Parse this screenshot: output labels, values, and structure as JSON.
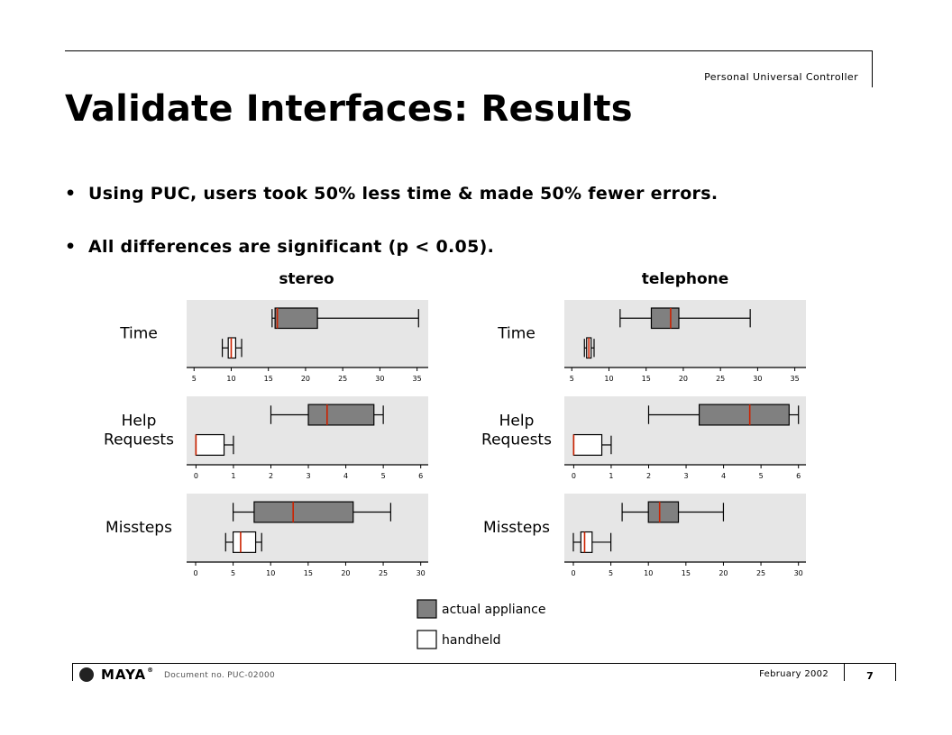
{
  "header": {
    "label": "Personal Universal Controller"
  },
  "title": "Validate Interfaces: Results",
  "bullets": [
    "Using PUC, users took 50% less time & made 50% fewer errors.",
    "All differences are significant (p < 0.05)."
  ],
  "bullet_glyph": "•",
  "colors": {
    "actual_box": "#808080",
    "handheld_box": "#ffffff",
    "median": "#cc2200",
    "panel_bg": "#e6e6e6"
  },
  "chart_data": [
    {
      "type": "boxplot",
      "title": "stereo",
      "panels": [
        {
          "label": "Time",
          "ticks": [
            5,
            10,
            15,
            20,
            25,
            30,
            35
          ],
          "xlim": [
            4,
            36.5
          ],
          "series": [
            {
              "name": "actual appliance",
              "min": 15.5,
              "q1": 15.9,
              "median": 16.2,
              "q3": 21.6,
              "max": 35.2
            },
            {
              "name": "handheld",
              "min": 8.8,
              "q1": 9.6,
              "median": 10.0,
              "q3": 10.6,
              "max": 11.4
            }
          ]
        },
        {
          "label": "Help Requests",
          "ticks": [
            0,
            1,
            2,
            3,
            4,
            5,
            6
          ],
          "xlim": [
            -0.25,
            6.2
          ],
          "series": [
            {
              "name": "actual appliance",
              "min": 2.0,
              "q1": 3.0,
              "median": 3.5,
              "q3": 4.75,
              "max": 5.0
            },
            {
              "name": "handheld",
              "min": 0,
              "q1": 0,
              "median": 0,
              "q3": 0.75,
              "max": 1.0
            }
          ]
        },
        {
          "label": "Missteps",
          "ticks": [
            0,
            5,
            10,
            15,
            20,
            25,
            30
          ],
          "xlim": [
            -1.2,
            31
          ],
          "series": [
            {
              "name": "actual appliance",
              "min": 5.0,
              "q1": 7.8,
              "median": 13.0,
              "q3": 21.0,
              "max": 26.0
            },
            {
              "name": "handheld",
              "min": 4.0,
              "q1": 5.0,
              "median": 6.0,
              "q3": 8.0,
              "max": 8.8
            }
          ]
        }
      ]
    },
    {
      "type": "boxplot",
      "title": "telephone",
      "panels": [
        {
          "label": "Time",
          "ticks": [
            5,
            10,
            15,
            20,
            25,
            30,
            35
          ],
          "xlim": [
            4,
            36.5
          ],
          "series": [
            {
              "name": "actual appliance",
              "min": 11.5,
              "q1": 15.7,
              "median": 18.3,
              "q3": 19.4,
              "max": 29.0
            },
            {
              "name": "handheld",
              "min": 6.7,
              "q1": 7.0,
              "median": 7.3,
              "q3": 7.6,
              "max": 8.0
            }
          ]
        },
        {
          "label": "Help Requests",
          "ticks": [
            0,
            1,
            2,
            3,
            4,
            5,
            6
          ],
          "xlim": [
            -0.25,
            6.2
          ],
          "series": [
            {
              "name": "actual appliance",
              "min": 2.0,
              "q1": 3.35,
              "median": 4.7,
              "q3": 5.75,
              "max": 6.0
            },
            {
              "name": "handheld",
              "min": 0,
              "q1": 0,
              "median": 0,
              "q3": 0.75,
              "max": 1.0
            }
          ]
        },
        {
          "label": "Missteps",
          "ticks": [
            0,
            5,
            10,
            15,
            20,
            25,
            30
          ],
          "xlim": [
            -1.2,
            31
          ],
          "series": [
            {
              "name": "actual appliance",
              "min": 6.5,
              "q1": 10.0,
              "median": 11.5,
              "q3": 14.0,
              "max": 20.0
            },
            {
              "name": "handheld",
              "min": 0,
              "q1": 1.0,
              "median": 1.5,
              "q3": 2.5,
              "max": 5.0
            }
          ]
        }
      ]
    }
  ],
  "legend": [
    {
      "label": "actual appliance",
      "fill": "#808080"
    },
    {
      "label": "handheld",
      "fill": "#ffffff"
    }
  ],
  "footer": {
    "logo_text": "MAYA",
    "logo_reg": "®",
    "doc_no": "Document no. PUC-02000",
    "date": "February 2002",
    "page": "7"
  }
}
